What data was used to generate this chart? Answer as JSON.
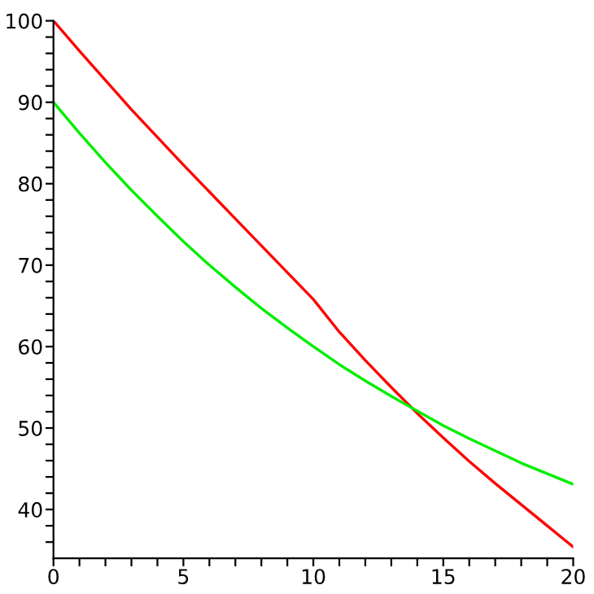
{
  "chart_data": {
    "type": "line",
    "x": [
      0,
      1,
      2,
      3,
      4,
      5,
      6,
      7,
      8,
      9,
      10,
      11,
      12,
      13,
      14,
      15,
      16,
      17,
      18,
      19,
      20
    ],
    "series": [
      {
        "color": "#ff0000",
        "values": [
          100,
          96.3,
          92.7,
          89.1,
          85.7,
          82.3,
          79.0,
          75.7,
          72.4,
          69.1,
          65.8,
          61.8,
          58.3,
          55.0,
          51.8,
          48.8,
          45.9,
          43.2,
          40.6,
          38.0,
          35.4
        ]
      },
      {
        "color": "#00ee00",
        "values": [
          90,
          86.2,
          82.6,
          79.2,
          76.0,
          72.9,
          70.0,
          67.3,
          64.7,
          62.3,
          60.0,
          57.8,
          55.8,
          53.9,
          52.1,
          50.3,
          48.7,
          47.2,
          45.7,
          44.4,
          43.1
        ]
      }
    ],
    "xlim": [
      0,
      20
    ],
    "ylim": [
      34,
      100
    ],
    "xticks": [
      0,
      {
        "value": 1,
        "label": null
      },
      {
        "value": 2,
        "label": null
      },
      {
        "value": 3,
        "label": null
      },
      {
        "value": 4,
        "label": null
      },
      5,
      {
        "value": 6,
        "label": null
      },
      {
        "value": 7,
        "label": null
      },
      {
        "value": 8,
        "label": null
      },
      {
        "value": 9,
        "label": null
      },
      10,
      {
        "value": 11,
        "label": null
      },
      {
        "value": 12,
        "label": null
      },
      {
        "value": 13,
        "label": null
      },
      {
        "value": 14,
        "label": null
      },
      15,
      {
        "value": 16,
        "label": null
      },
      {
        "value": 17,
        "label": null
      },
      {
        "value": 18,
        "label": null
      },
      {
        "value": 19,
        "label": null
      },
      20
    ],
    "yticks": [
      {
        "value": 36,
        "label": null
      },
      {
        "value": 38,
        "label": null
      },
      40,
      {
        "value": 42,
        "label": null
      },
      {
        "value": 44,
        "label": null
      },
      {
        "value": 46,
        "label": null
      },
      {
        "value": 48,
        "label": null
      },
      50,
      {
        "value": 52,
        "label": null
      },
      {
        "value": 54,
        "label": null
      },
      {
        "value": 56,
        "label": null
      },
      {
        "value": 58,
        "label": null
      },
      60,
      {
        "value": 62,
        "label": null
      },
      {
        "value": 64,
        "label": null
      },
      {
        "value": 66,
        "label": null
      },
      {
        "value": 68,
        "label": null
      },
      70,
      {
        "value": 72,
        "label": null
      },
      {
        "value": 74,
        "label": null
      },
      {
        "value": 76,
        "label": null
      },
      {
        "value": 78,
        "label": null
      },
      80,
      {
        "value": 82,
        "label": null
      },
      {
        "value": 84,
        "label": null
      },
      {
        "value": 86,
        "label": null
      },
      {
        "value": 88,
        "label": null
      },
      90,
      {
        "value": 92,
        "label": null
      },
      {
        "value": 94,
        "label": null
      },
      {
        "value": 96,
        "label": null
      },
      {
        "value": 98,
        "label": null
      },
      100
    ],
    "grid": false,
    "marker": "none",
    "line_style": "solid"
  }
}
